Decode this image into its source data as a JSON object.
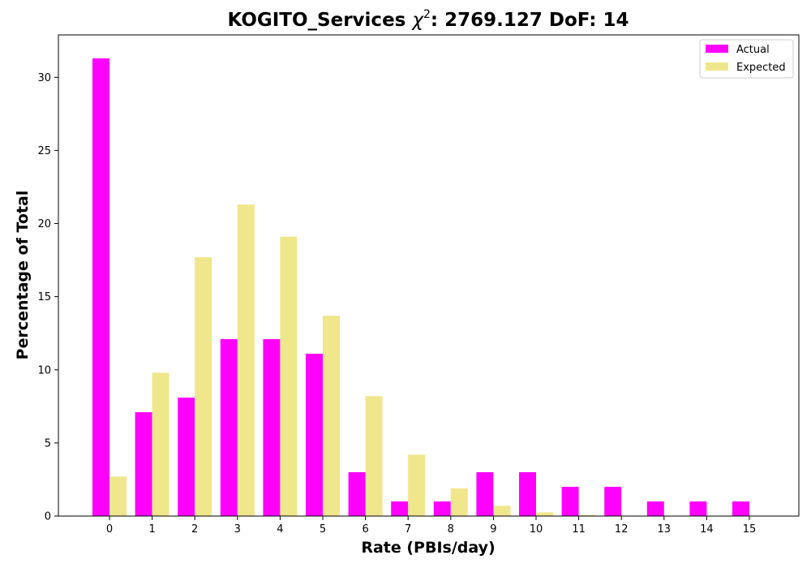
{
  "chart_data": {
    "type": "bar",
    "title_prefix": "KOGITO_Services ",
    "title_chi": "χ",
    "title_sup": "2",
    "title_suffix": ": 2769.127 DoF: 14",
    "xlabel": "Rate (PBIs/day)",
    "ylabel": "Percentage of Total",
    "categories": [
      "0",
      "1",
      "2",
      "3",
      "4",
      "5",
      "6",
      "7",
      "8",
      "9",
      "10",
      "11",
      "12",
      "13",
      "14",
      "15"
    ],
    "series": [
      {
        "name": "Actual",
        "color": "#ff00ff",
        "values": [
          31.3,
          7.1,
          8.1,
          12.1,
          12.1,
          11.1,
          3.0,
          1.0,
          1.0,
          3.0,
          3.0,
          2.0,
          2.0,
          1.0,
          1.0,
          1.0
        ]
      },
      {
        "name": "Expected",
        "color": "#f0e68c",
        "values": [
          2.7,
          9.8,
          17.7,
          21.3,
          19.1,
          13.7,
          8.2,
          4.2,
          1.9,
          0.7,
          0.25,
          0.08,
          0.02,
          0.0,
          0.0,
          0.0
        ]
      }
    ],
    "yticks": [
      "0",
      "5",
      "10",
      "15",
      "20",
      "25",
      "30"
    ],
    "ylim": [
      0,
      32.9
    ],
    "grid": false,
    "legend_position": "top-right"
  }
}
